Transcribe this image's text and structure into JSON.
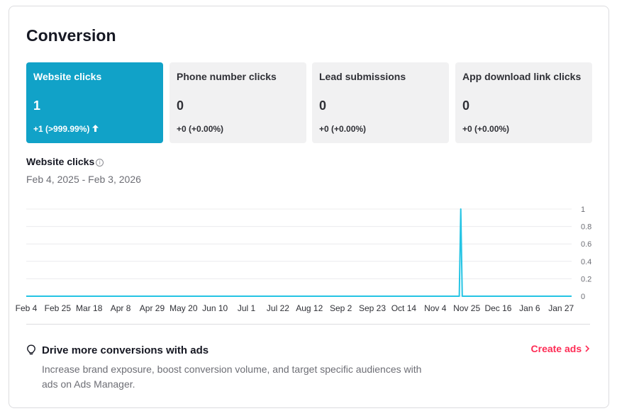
{
  "title": "Conversion",
  "metrics": [
    {
      "label": "Website clicks",
      "value": "1",
      "delta": "+1 (>999.99%)",
      "trend": "up",
      "active": true
    },
    {
      "label": "Phone number clicks",
      "value": "0",
      "delta": "+0 (+0.00%)",
      "trend": "",
      "active": false
    },
    {
      "label": "Lead submissions",
      "value": "0",
      "delta": "+0 (+0.00%)",
      "trend": "",
      "active": false
    },
    {
      "label": "App download link clicks",
      "value": "0",
      "delta": "+0 (+0.00%)",
      "trend": "",
      "active": false
    }
  ],
  "chart_section": {
    "title": "Website clicks",
    "info_icon": "info-circle-icon",
    "date_range": "Feb 4, 2025 - Feb 3, 2026"
  },
  "chart_data": {
    "type": "line",
    "title": "Website clicks",
    "xlabel": "",
    "ylabel": "",
    "ylim": [
      0,
      1
    ],
    "yticks": [
      "0",
      "0.2",
      "0.4",
      "0.6",
      "0.8",
      "1"
    ],
    "xticks": [
      "Feb 4",
      "Feb 25",
      "Mar 18",
      "Apr 8",
      "Apr 29",
      "May 20",
      "Jun 10",
      "Jul 1",
      "Jul 22",
      "Aug 12",
      "Sep 2",
      "Sep 23",
      "Oct 14",
      "Nov 4",
      "Nov 25",
      "Dec 16",
      "Jan 6",
      "Jan 27"
    ],
    "x_start": "2025-02-04",
    "x_end": "2026-02-03",
    "grid": true,
    "series": [
      {
        "color": "#25c4e4",
        "points": [
          {
            "x": "2025-02-04",
            "y": 0
          },
          {
            "x": "2025-11-20",
            "y": 0
          },
          {
            "x": "2025-11-21",
            "y": 1
          },
          {
            "x": "2025-11-22",
            "y": 0
          },
          {
            "x": "2026-02-03",
            "y": 0
          }
        ]
      }
    ]
  },
  "promo": {
    "icon": "lightbulb-icon",
    "title": "Drive more conversions with ads",
    "text": "Increase brand exposure, boost conversion volume, and target specific audiences with ads on Ads Manager.",
    "cta": "Create ads",
    "cta_icon": "chevron-right-icon"
  },
  "colors": {
    "accent": "#11a2c8",
    "line": "#25c4e4",
    "cta": "#fe2c55"
  }
}
